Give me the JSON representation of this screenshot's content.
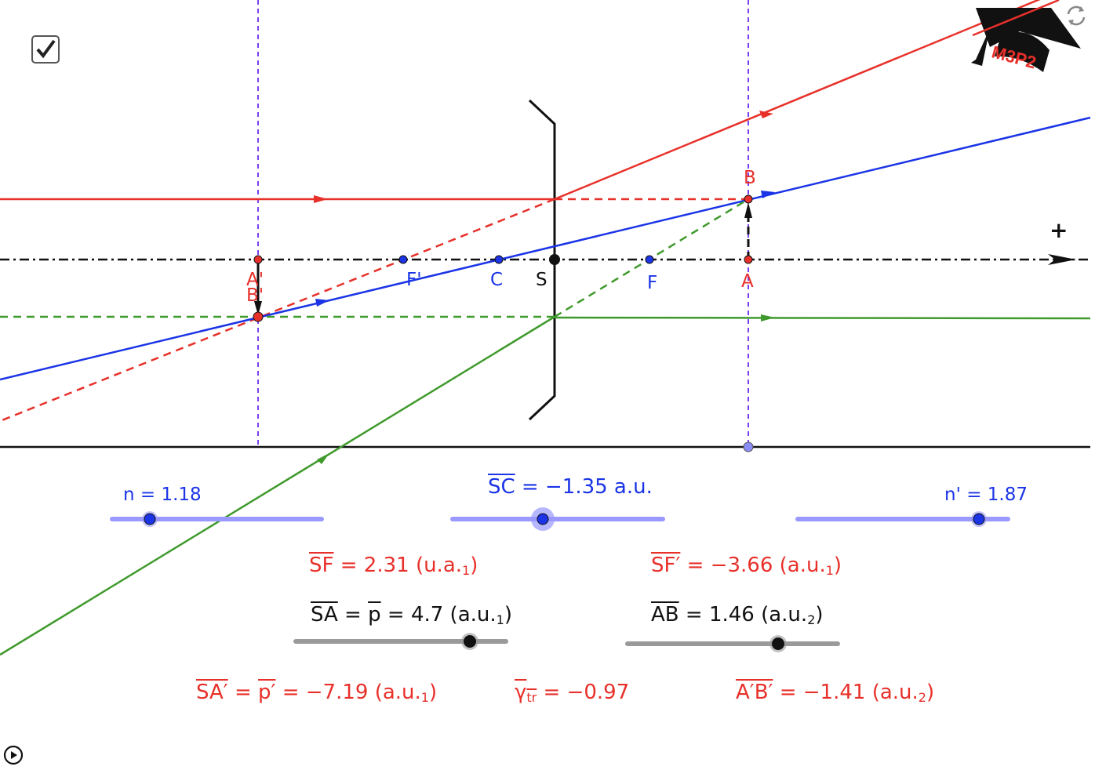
{
  "points": {
    "A": "A",
    "B": "B",
    "A_prime": "A'",
    "B_prime": "B'",
    "F": "F",
    "F_prime": "F'",
    "C": "C",
    "S": "S"
  },
  "axis_sign": "+",
  "colors": {
    "red": "#e8302a",
    "blue": "#1a34e6",
    "green": "#3f9a2c",
    "purple": "#7b3ff2",
    "slider_blue": "#9999ff",
    "slider_gray": "#9a9a9a"
  },
  "sliders": {
    "n": {
      "label": "n = 1.18",
      "value": 1.18
    },
    "SC": {
      "value": -1.35
    },
    "n_prime": {
      "label": "n' = 1.87",
      "value": 1.87
    },
    "SA": {
      "value": 4.7
    },
    "AB": {
      "value": 1.46
    }
  },
  "formulas": {
    "SC": {
      "lhs": "SC",
      "rest": " = −1.35 a.u."
    },
    "SF": {
      "lhs": "SF",
      "rest": " = 2.31 (u.a.",
      "sub": "1",
      "close": ")"
    },
    "SF_prime": {
      "lhs": "SF′",
      "rest": " = −3.66 (a.u.",
      "sub": "1",
      "close": ")"
    },
    "SA": {
      "lhs": "SA",
      "eq": " = ",
      "mid": "p",
      "rest": " = 4.7 (a.u.",
      "sub": "1",
      "close": ")"
    },
    "AB": {
      "lhs": "AB",
      "rest": " =  1.46 (a.u.",
      "sub": "2",
      "close": ")"
    },
    "SA_prime": {
      "lhs": "SA′",
      "eq": " = ",
      "mid": "p′",
      "rest": " = −7.19 (a.u.",
      "sub": "1",
      "close": ")"
    },
    "gamma": {
      "lhs": "γ",
      "lsub": "tr",
      "rest": " = −0.97"
    },
    "AB_prime": {
      "lhs": "A′B′",
      "rest": " = −1.41 (a.u.",
      "sub": "2",
      "close": ")"
    }
  },
  "logo": {
    "text": "M3P2",
    "icon": "graduation-cap-icon"
  },
  "checkbox": {
    "checked": true
  },
  "icons": {
    "reset": "reset-icon",
    "play": "play-icon"
  }
}
